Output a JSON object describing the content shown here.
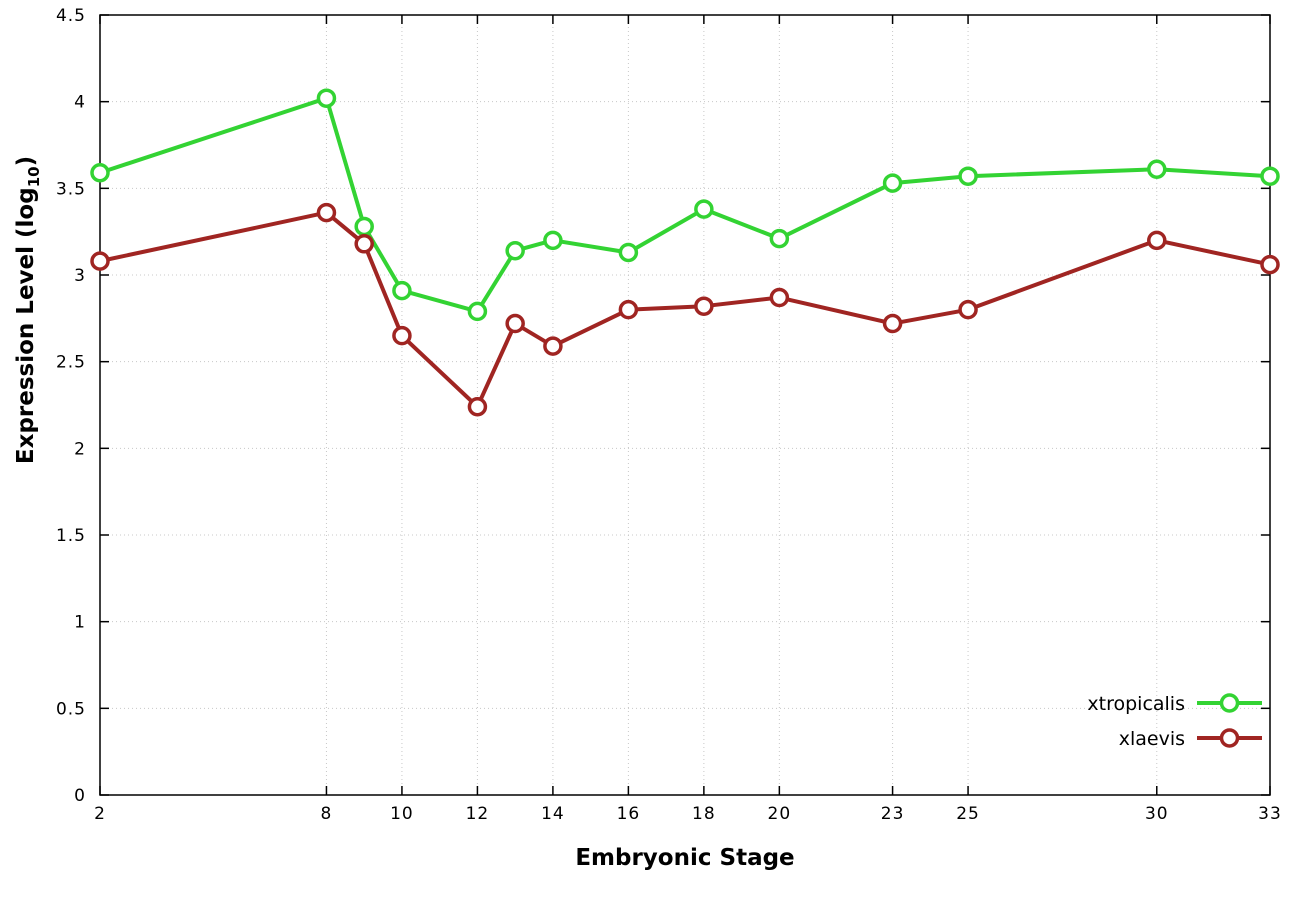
{
  "chart_data": {
    "type": "line",
    "x": [
      2,
      8,
      9,
      10,
      12,
      13,
      14,
      16,
      18,
      20,
      23,
      25,
      30,
      33
    ],
    "series": [
      {
        "name": "xtropicalis",
        "color": "#33d333",
        "values": [
          3.59,
          4.02,
          3.28,
          2.91,
          2.79,
          3.14,
          3.2,
          3.13,
          3.38,
          3.21,
          3.53,
          3.57,
          3.61,
          3.57
        ]
      },
      {
        "name": "xlaevis",
        "color": "#a02522",
        "values": [
          3.08,
          3.36,
          3.18,
          2.65,
          2.24,
          2.72,
          2.59,
          2.8,
          2.82,
          2.87,
          2.72,
          2.8,
          3.2,
          3.06
        ]
      }
    ],
    "xlabel": "Embryonic Stage",
    "ylabel": {
      "prefix": "Expression Level (log",
      "sub": "10",
      "suffix": ")"
    },
    "xlim": [
      2,
      33
    ],
    "ylim": [
      0,
      4.5
    ],
    "xticks": [
      2,
      8,
      10,
      12,
      14,
      16,
      18,
      20,
      23,
      25,
      30,
      33
    ],
    "yticks": [
      0,
      0.5,
      1,
      1.5,
      2,
      2.5,
      3,
      3.5,
      4,
      4.5
    ],
    "grid": true,
    "legend_position": "bottom-right",
    "marker": "open-circle",
    "background": "#ffffff",
    "axis_color": "#000000",
    "grid_color": "#c8c8c8"
  }
}
